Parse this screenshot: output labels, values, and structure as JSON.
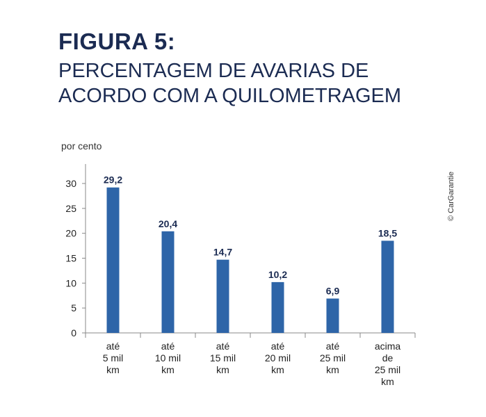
{
  "figure_label": "FIGURA 5:",
  "figure_title": "PERCENTAGEM DE AVARIAS DE ACORDO COM A QUILOMETRAGEM",
  "copyright": "© CarGarantie",
  "colors": {
    "bar": "#2e65a8",
    "heading": "#1b2b52",
    "axis": "#888888"
  },
  "chart_data": {
    "type": "bar",
    "title": "PERCENTAGEM DE AVARIAS DE ACORDO COM A QUILOMETRAGEM",
    "ylabel": "por cento",
    "xlabel": "",
    "ylim": [
      0,
      30
    ],
    "yticks": [
      0,
      5,
      10,
      15,
      20,
      25,
      30
    ],
    "grid": false,
    "categories": [
      [
        "até",
        "5 mil",
        "km"
      ],
      [
        "até",
        "10 mil",
        "km"
      ],
      [
        "até",
        "15 mil",
        "km"
      ],
      [
        "até",
        "20 mil",
        "km"
      ],
      [
        "até",
        "25 mil",
        "km"
      ],
      [
        "acima",
        "de",
        "25 mil",
        "km"
      ]
    ],
    "values": [
      29.2,
      20.4,
      14.7,
      10.2,
      6.9,
      18.5
    ],
    "data_labels": [
      "29,2",
      "20,4",
      "14,7",
      "10,2",
      "6,9",
      "18,5"
    ]
  }
}
